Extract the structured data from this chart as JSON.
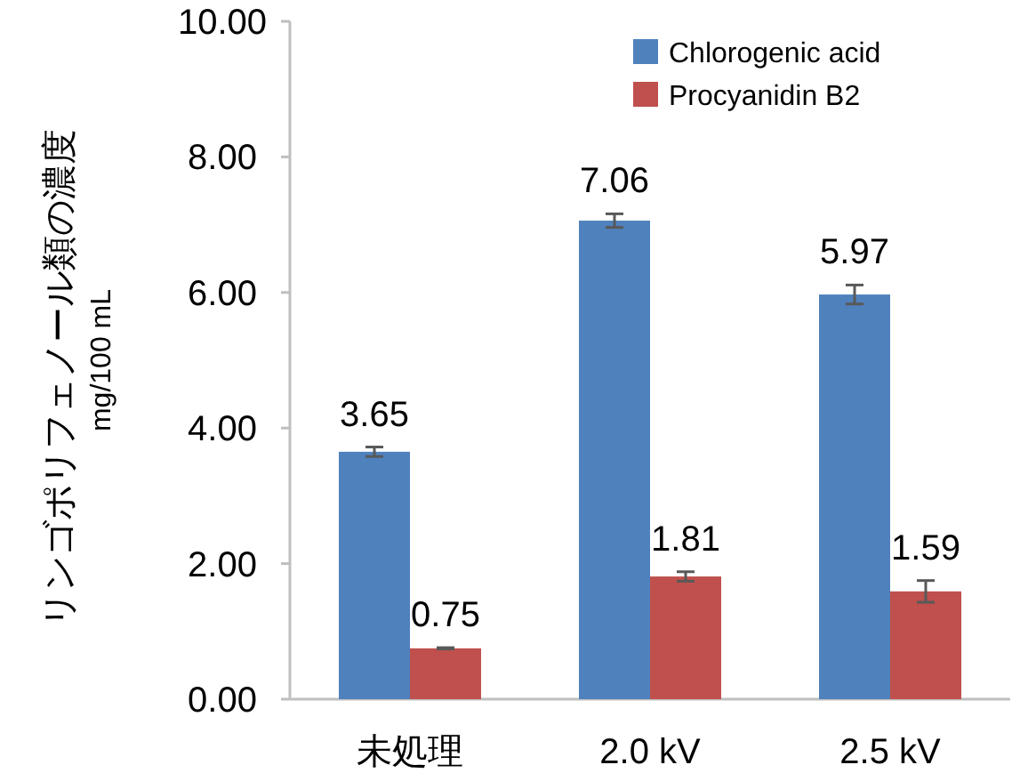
{
  "chart_data": {
    "type": "bar",
    "ylabel": "リンゴポリフェノール類の濃度\nmg/100 mL",
    "categories": [
      "未処理",
      "2.0 kV",
      "2.5 kV"
    ],
    "series": [
      {
        "name": "Chlorogenic acid",
        "color": "#4f81bd",
        "values": [
          3.65,
          7.06,
          5.97
        ],
        "errors": [
          0.07,
          0.1,
          0.14
        ]
      },
      {
        "name": "Procyanidin B2",
        "color": "#c0504d",
        "values": [
          0.75,
          1.81,
          1.59
        ],
        "errors": [
          0.01,
          0.07,
          0.16
        ]
      }
    ],
    "ylim": [
      0,
      10
    ],
    "yticks": [
      {
        "value": 0,
        "label": "0.00"
      },
      {
        "value": 2,
        "label": "2.00"
      },
      {
        "value": 4,
        "label": "4.00"
      },
      {
        "value": 6,
        "label": "6.00"
      },
      {
        "value": 8,
        "label": "8.00"
      },
      {
        "value": 10,
        "label": "10.00"
      }
    ],
    "data_labels": true,
    "legend": "top right",
    "grid": false
  }
}
